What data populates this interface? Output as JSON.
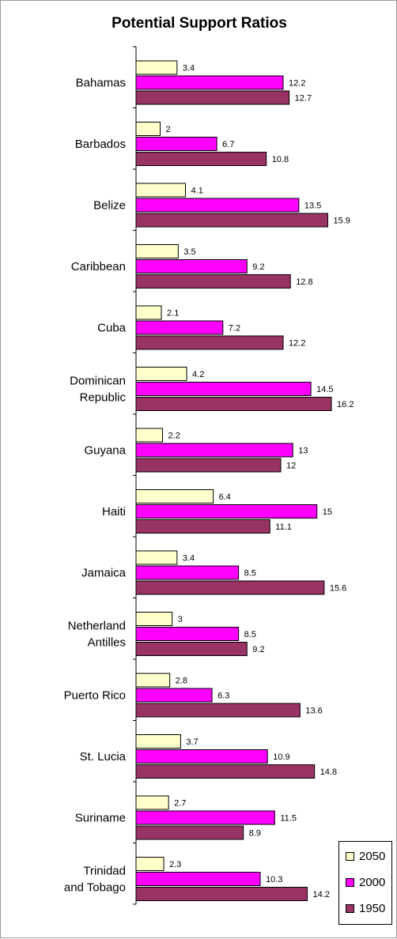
{
  "chart_data": {
    "type": "bar",
    "orientation": "horizontal",
    "title": "Potential Support Ratios",
    "categories": [
      "Bahamas",
      "Barbados",
      "Belize",
      "Caribbean",
      "Cuba",
      "Dominican Republic",
      "Guyana",
      "Haiti",
      "Jamaica",
      "Netherland Antilles",
      "Puerto Rico",
      "St. Lucia",
      "Suriname",
      "Trinidad and Tobago"
    ],
    "series": [
      {
        "name": "2050",
        "color": "#ffffcc",
        "values": [
          3.4,
          2,
          4.1,
          3.5,
          2.1,
          4.2,
          2.2,
          6.4,
          3.4,
          3,
          2.8,
          3.7,
          2.7,
          2.3
        ]
      },
      {
        "name": "2000",
        "color": "#ff00ff",
        "values": [
          12.2,
          6.7,
          13.5,
          9.2,
          7.2,
          14.5,
          13,
          15,
          8.5,
          8.5,
          6.3,
          10.9,
          11.5,
          10.3
        ]
      },
      {
        "name": "1950",
        "color": "#993366",
        "values": [
          12.7,
          10.8,
          15.9,
          12.8,
          12.2,
          16.2,
          12,
          11.1,
          15.6,
          9.2,
          13.6,
          14.8,
          8.9,
          14.2
        ]
      }
    ],
    "legend_position": "bottom-right",
    "grid": false
  }
}
